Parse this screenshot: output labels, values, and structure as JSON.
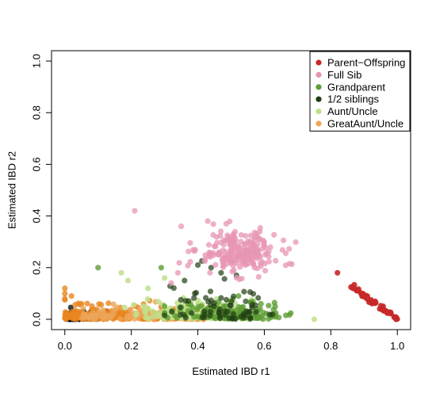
{
  "chart_data": {
    "type": "scatter",
    "xlabel": "Estimated IBD r1",
    "ylabel": "Estimated IBD r2",
    "xlim": [
      -0.04,
      1.04
    ],
    "ylim": [
      -0.04,
      1.04
    ],
    "x_ticks": [
      "0.0",
      "0.2",
      "0.4",
      "0.6",
      "0.8",
      "1.0"
    ],
    "y_ticks": [
      "0.0",
      "0.2",
      "0.4",
      "0.6",
      "0.8",
      "1.0"
    ],
    "legend_position": "top-right",
    "series": [
      {
        "name": "Parent−Offspring",
        "color": "#c62828"
      },
      {
        "name": "Full Sib",
        "color": "#e795b4"
      },
      {
        "name": "Grandparent",
        "color": "#5f9e35"
      },
      {
        "name": "1/2 siblings",
        "color": "#1f3d12"
      },
      {
        "name": "Aunt/Uncle",
        "color": "#bfe08c"
      },
      {
        "name": "GreatAunt/Uncle",
        "color": "#eca55a"
      }
    ],
    "background_series": [
      {
        "color": "#000000"
      },
      {
        "color": "#e8861f"
      }
    ]
  }
}
